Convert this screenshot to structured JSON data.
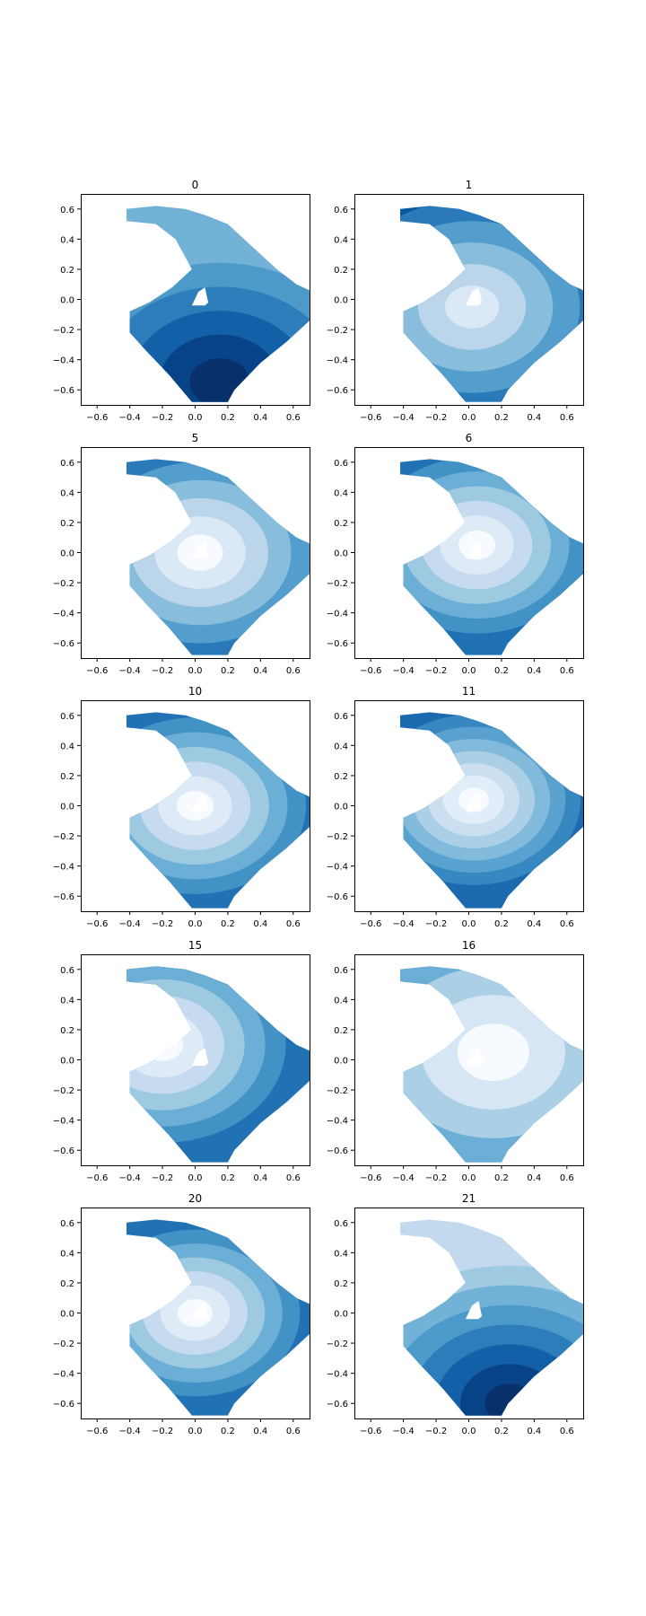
{
  "chart_data": {
    "type": "contour",
    "colormap": "Blues",
    "colormap_stops": [
      "#f7fbff",
      "#deebf7",
      "#c6dbef",
      "#9ecae1",
      "#6baed6",
      "#4292c6",
      "#2171b5",
      "#08519c",
      "#08306b"
    ],
    "grid": false,
    "xlim": [
      -0.7,
      0.7
    ],
    "ylim": [
      -0.7,
      0.7
    ],
    "xticks": [
      "−0.6",
      "−0.4",
      "−0.2",
      "0.0",
      "0.2",
      "0.4",
      "0.6"
    ],
    "yticks": [
      "−0.6",
      "−0.4",
      "−0.2",
      "0.0",
      "0.2",
      "0.4",
      "0.6"
    ],
    "xtick_values": [
      -0.6,
      -0.4,
      -0.2,
      0.0,
      0.2,
      0.4,
      0.6
    ],
    "ytick_values": [
      -0.6,
      -0.4,
      -0.2,
      0.0,
      0.2,
      0.4,
      0.6
    ],
    "domain_outline": [
      [
        -0.4,
        -0.08
      ],
      [
        -0.28,
        -0.02
      ],
      [
        -0.14,
        0.08
      ],
      [
        -0.02,
        0.2
      ],
      [
        -0.12,
        0.4
      ],
      [
        -0.24,
        0.5
      ],
      [
        -0.42,
        0.52
      ],
      [
        -0.42,
        0.6
      ],
      [
        -0.24,
        0.62
      ],
      [
        -0.06,
        0.6
      ],
      [
        0.06,
        0.56
      ],
      [
        0.2,
        0.5
      ],
      [
        0.34,
        0.36
      ],
      [
        0.5,
        0.2
      ],
      [
        0.62,
        0.1
      ],
      [
        0.7,
        0.06
      ],
      [
        0.7,
        -0.14
      ],
      [
        0.56,
        -0.28
      ],
      [
        0.4,
        -0.42
      ],
      [
        0.24,
        -0.6
      ],
      [
        0.2,
        -0.68
      ],
      [
        -0.02,
        -0.68
      ],
      [
        -0.16,
        -0.5
      ],
      [
        -0.3,
        -0.34
      ],
      [
        -0.4,
        -0.22
      ]
    ],
    "hole_outline": [
      [
        0.02,
        0.05
      ],
      [
        0.06,
        0.08
      ],
      [
        0.08,
        -0.02
      ],
      [
        0.06,
        -0.04
      ],
      [
        -0.02,
        -0.04
      ]
    ],
    "panels": [
      {
        "title": "0",
        "levels": 5,
        "center": [
          0.15,
          -0.55
        ],
        "sigma": 0.5,
        "invert": false,
        "base": 3
      },
      {
        "title": "1",
        "levels": 5,
        "center": [
          0.02,
          -0.05
        ],
        "sigma": 0.45,
        "invert": true,
        "base": 1
      },
      {
        "title": "5",
        "levels": 5,
        "center": [
          0.03,
          0.0
        ],
        "sigma": 0.38,
        "invert": true,
        "base": 0
      },
      {
        "title": "6",
        "levels": 6,
        "center": [
          0.05,
          0.05
        ],
        "sigma": 0.36,
        "invert": true,
        "base": 0
      },
      {
        "title": "10",
        "levels": 6,
        "center": [
          0.0,
          0.0
        ],
        "sigma": 0.36,
        "invert": true,
        "base": 0
      },
      {
        "title": "11",
        "levels": 7,
        "center": [
          0.03,
          0.04
        ],
        "sigma": 0.34,
        "invert": true,
        "base": 0
      },
      {
        "title": "15",
        "levels": 6,
        "center": [
          -0.2,
          0.1
        ],
        "sigma": 0.4,
        "invert": true,
        "base": 0
      },
      {
        "title": "16",
        "levels": 4,
        "center": [
          0.15,
          0.05
        ],
        "sigma": 0.5,
        "invert": true,
        "base": 0
      },
      {
        "title": "20",
        "levels": 6,
        "center": [
          0.0,
          0.0
        ],
        "sigma": 0.34,
        "invert": true,
        "base": 0
      },
      {
        "title": "21",
        "levels": 7,
        "center": [
          0.25,
          -0.6
        ],
        "sigma": 0.55,
        "invert": false,
        "base": 1
      }
    ]
  }
}
